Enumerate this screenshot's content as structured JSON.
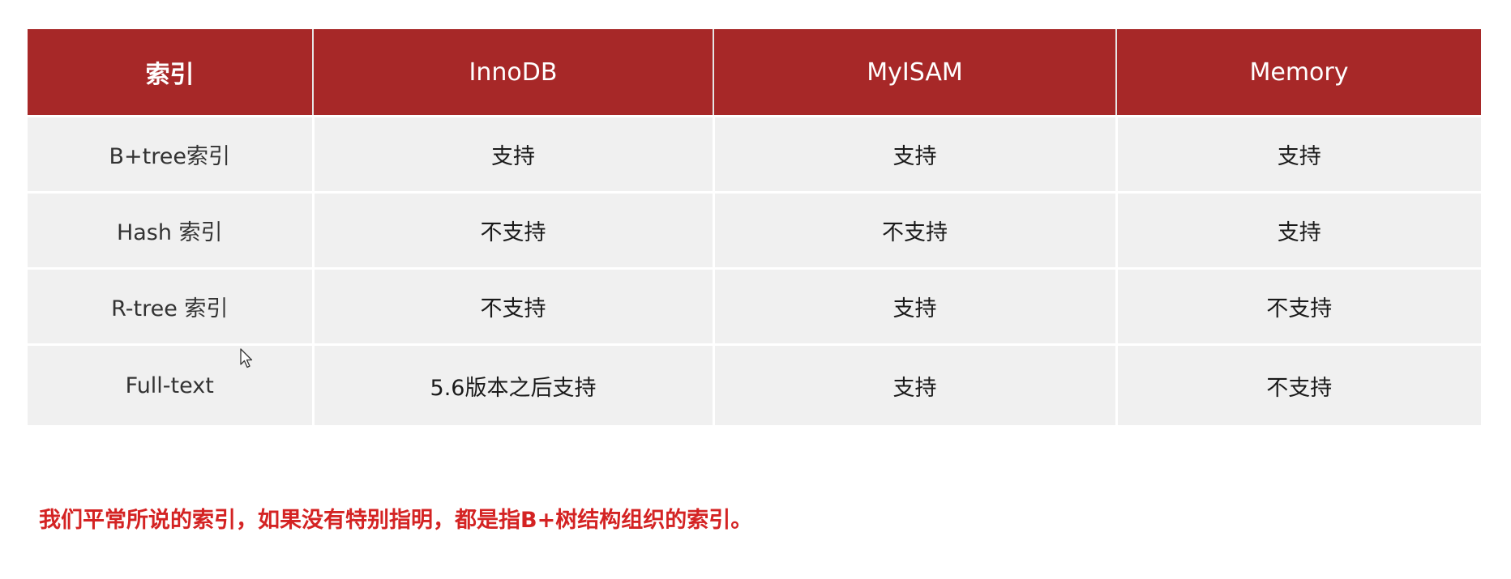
{
  "table": {
    "headers": [
      "索引",
      "InnoDB",
      "MyISAM",
      "Memory"
    ],
    "rows": [
      {
        "label": "B+tree索引",
        "values": [
          "支持",
          "支持",
          "支持"
        ]
      },
      {
        "label": "Hash 索引",
        "values": [
          "不支持",
          "不支持",
          "支持"
        ]
      },
      {
        "label": "R-tree 索引",
        "values": [
          "不支持",
          "支持",
          "不支持"
        ]
      },
      {
        "label": "Full-text",
        "values": [
          "5.6版本之后支持",
          "支持",
          "不支持"
        ]
      }
    ]
  },
  "footnote": "我们平常所说的索引，如果没有特别指明，都是指B+树结构组织的索引。",
  "colors": {
    "header_bg": "#a72828",
    "cell_bg": "#f0f0f0",
    "footnote_text": "#d42323"
  },
  "icons": {
    "cursor": "mouse-pointer-icon"
  }
}
